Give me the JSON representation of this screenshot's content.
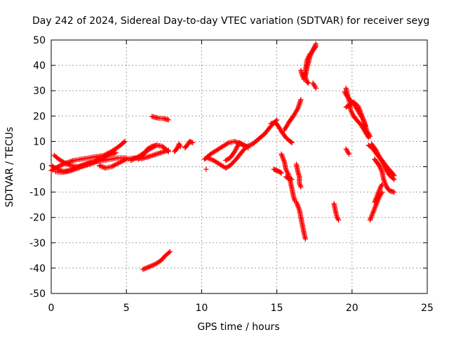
{
  "chart_data": {
    "type": "scatter",
    "title": "Day 242 of 2024, Sidereal Day-to-day VTEC variation (SDTVAR) for receiver seyg",
    "xlabel": "GPS time / hours",
    "ylabel": "SDTVAR / TECUs",
    "xlim": [
      0,
      25
    ],
    "ylim": [
      -50,
      50
    ],
    "xticks": [
      "0",
      "5",
      "10",
      "15",
      "20",
      "25"
    ],
    "yticks": [
      "-50",
      "-40",
      "-30",
      "-20",
      "-10",
      "0",
      "10",
      "20",
      "30",
      "40",
      "50"
    ],
    "grid": true,
    "marker": "plus",
    "series": [
      {
        "name": "SDTVAR",
        "color": "#ff0000",
        "segments": [
          [
            [
              0.0,
              -1.5
            ],
            [
              0.3,
              -0.5
            ],
            [
              0.6,
              0.5
            ],
            [
              1.0,
              1.5
            ],
            [
              1.5,
              2.5
            ],
            [
              2.0,
              3.0
            ],
            [
              2.5,
              3.5
            ],
            [
              3.0,
              4.0
            ],
            [
              3.5,
              4.5
            ],
            [
              4.0,
              6.0
            ],
            [
              4.5,
              8.0
            ],
            [
              4.9,
              10.0
            ]
          ],
          [
            [
              0.0,
              0.5
            ],
            [
              0.4,
              -1.0
            ],
            [
              0.8,
              -1.8
            ],
            [
              1.2,
              -1.5
            ],
            [
              1.6,
              -0.5
            ],
            [
              2.0,
              0.5
            ],
            [
              2.5,
              1.5
            ],
            [
              3.0,
              2.0
            ],
            [
              3.5,
              2.5
            ],
            [
              4.0,
              3.0
            ],
            [
              4.5,
              3.5
            ],
            [
              5.0,
              3.5
            ]
          ],
          [
            [
              0.2,
              4.5
            ],
            [
              0.5,
              3.0
            ],
            [
              0.9,
              1.5
            ],
            [
              1.3,
              0.5
            ],
            [
              1.8,
              0.0
            ],
            [
              2.3,
              0.5
            ],
            [
              2.8,
              1.5
            ],
            [
              3.3,
              3.0
            ],
            [
              3.8,
              4.5
            ],
            [
              4.3,
              5.5
            ]
          ],
          [
            [
              0.3,
              -2.0
            ],
            [
              0.8,
              -2.2
            ],
            [
              1.3,
              -1.5
            ],
            [
              1.8,
              -0.5
            ],
            [
              2.3,
              0.8
            ],
            [
              2.8,
              2.0
            ],
            [
              3.3,
              3.5
            ]
          ],
          [
            [
              3.2,
              0.5
            ],
            [
              3.6,
              -0.5
            ],
            [
              4.0,
              0.0
            ],
            [
              4.5,
              1.5
            ],
            [
              5.0,
              3.0
            ],
            [
              5.5,
              3.5
            ],
            [
              6.0,
              3.2
            ],
            [
              6.5,
              4.0
            ],
            [
              7.0,
              5.0
            ],
            [
              7.5,
              6.0
            ],
            [
              7.8,
              6.5
            ]
          ],
          [
            [
              5.3,
              2.5
            ],
            [
              5.8,
              4.0
            ],
            [
              6.3,
              6.0
            ],
            [
              6.7,
              7.5
            ],
            [
              7.0,
              8.5
            ],
            [
              7.4,
              8.0
            ],
            [
              7.8,
              6.0
            ]
          ],
          [
            [
              5.8,
              3.0
            ],
            [
              6.1,
              4.5
            ],
            [
              6.4,
              7.0
            ],
            [
              6.7,
              8.0
            ],
            [
              7.0,
              8.5
            ],
            [
              7.3,
              8.2
            ]
          ],
          [
            [
              6.7,
              19.8
            ],
            [
              7.1,
              19.2
            ],
            [
              7.5,
              19.0
            ],
            [
              7.8,
              18.5
            ]
          ],
          [
            [
              6.1,
              -40.5
            ],
            [
              6.5,
              -39.5
            ],
            [
              6.9,
              -38.5
            ],
            [
              7.3,
              -37.0
            ],
            [
              7.6,
              -35.0
            ],
            [
              7.9,
              -33.5
            ]
          ],
          [
            [
              8.2,
              6.0
            ],
            [
              8.4,
              7.5
            ],
            [
              8.5,
              9.0
            ],
            [
              8.6,
              8.0
            ]
          ],
          [
            [
              8.9,
              7.5
            ],
            [
              9.1,
              9.0
            ],
            [
              9.2,
              10.0
            ],
            [
              9.4,
              9.5
            ]
          ],
          [
            [
              10.3,
              -1.0
            ]
          ],
          [
            [
              10.2,
              3.0
            ],
            [
              10.6,
              5.0
            ],
            [
              11.0,
              6.5
            ],
            [
              11.4,
              8.0
            ],
            [
              11.8,
              9.5
            ],
            [
              12.2,
              10.0
            ],
            [
              12.6,
              9.0
            ],
            [
              13.0,
              8.0
            ],
            [
              13.4,
              9.0
            ],
            [
              13.8,
              11.0
            ],
            [
              14.2,
              13.0
            ],
            [
              14.6,
              16.0
            ],
            [
              15.0,
              18.5
            ]
          ],
          [
            [
              10.4,
              3.5
            ],
            [
              10.8,
              2.5
            ],
            [
              11.2,
              1.0
            ],
            [
              11.6,
              -0.5
            ],
            [
              11.9,
              0.5
            ],
            [
              12.3,
              3.0
            ],
            [
              12.7,
              6.0
            ],
            [
              13.0,
              8.0
            ]
          ],
          [
            [
              11.6,
              2.5
            ],
            [
              11.9,
              3.5
            ],
            [
              12.2,
              6.0
            ],
            [
              12.5,
              9.5
            ],
            [
              12.8,
              8.5
            ],
            [
              13.1,
              7.5
            ]
          ],
          [
            [
              14.6,
              17.0
            ],
            [
              14.9,
              17.5
            ],
            [
              15.1,
              16.0
            ],
            [
              15.3,
              14.0
            ],
            [
              15.6,
              11.5
            ],
            [
              15.9,
              10.0
            ],
            [
              16.0,
              9.5
            ]
          ],
          [
            [
              15.5,
              14.5
            ],
            [
              15.8,
              17.5
            ],
            [
              16.1,
              20.0
            ],
            [
              16.4,
              23.0
            ],
            [
              16.6,
              26.5
            ]
          ],
          [
            [
              14.8,
              -1.0
            ],
            [
              15.0,
              -1.5
            ],
            [
              15.2,
              -2.0
            ],
            [
              15.3,
              -2.5
            ]
          ],
          [
            [
              15.3,
              5.0
            ],
            [
              15.5,
              2.0
            ],
            [
              15.6,
              -1.0
            ],
            [
              15.8,
              -3.5
            ],
            [
              15.9,
              -6.0
            ],
            [
              16.0,
              -8.5
            ],
            [
              16.1,
              -11.5
            ],
            [
              16.2,
              -13.5
            ]
          ],
          [
            [
              15.6,
              -4.0
            ],
            [
              15.8,
              -4.5
            ],
            [
              16.0,
              -5.0
            ]
          ],
          [
            [
              16.3,
              1.0
            ],
            [
              16.4,
              -2.0
            ],
            [
              16.5,
              -4.0
            ],
            [
              16.5,
              -6.5
            ],
            [
              16.6,
              -8.0
            ]
          ],
          [
            [
              16.3,
              -14.0
            ],
            [
              16.5,
              -17.0
            ],
            [
              16.6,
              -20.0
            ],
            [
              16.7,
              -23.0
            ],
            [
              16.8,
              -26.0
            ],
            [
              16.9,
              -28.5
            ]
          ],
          [
            [
              16.9,
              36.0
            ],
            [
              17.0,
              39.0
            ],
            [
              17.1,
              41.0
            ],
            [
              17.2,
              43.5
            ],
            [
              17.4,
              46.0
            ],
            [
              17.6,
              48.5
            ]
          ],
          [
            [
              17.2,
              44.0
            ],
            [
              17.4,
              46.0
            ],
            [
              17.6,
              47.5
            ]
          ],
          [
            [
              16.9,
              35.5
            ],
            [
              17.0,
              33.5
            ],
            [
              17.1,
              33.0
            ]
          ],
          [
            [
              16.6,
              38.0
            ],
            [
              16.7,
              36.0
            ],
            [
              16.8,
              34.5
            ],
            [
              16.9,
              38.0
            ],
            [
              17.0,
              42.0
            ],
            [
              17.2,
              44.5
            ]
          ],
          [
            [
              17.4,
              33.0
            ],
            [
              17.5,
              32.0
            ],
            [
              17.6,
              31.0
            ]
          ],
          [
            [
              18.8,
              -14.5
            ],
            [
              18.9,
              -17.5
            ],
            [
              19.0,
              -20.0
            ],
            [
              19.1,
              -21.0
            ]
          ],
          [
            [
              19.6,
              31.0
            ],
            [
              19.7,
              28.5
            ],
            [
              19.8,
              26.0
            ],
            [
              19.9,
              22.5
            ],
            [
              20.1,
              20.0
            ],
            [
              20.3,
              18.5
            ],
            [
              20.6,
              16.5
            ],
            [
              20.9,
              13.5
            ],
            [
              21.1,
              11.5
            ]
          ],
          [
            [
              19.6,
              23.5
            ],
            [
              19.9,
              24.5
            ],
            [
              20.1,
              25.5
            ],
            [
              20.4,
              24.0
            ],
            [
              20.6,
              21.0
            ],
            [
              20.8,
              18.0
            ],
            [
              21.0,
              14.0
            ],
            [
              21.2,
              12.0
            ]
          ],
          [
            [
              19.5,
              29.5
            ],
            [
              19.7,
              27.5
            ],
            [
              20.1,
              25.0
            ],
            [
              20.4,
              22.0
            ],
            [
              20.7,
              19.0
            ],
            [
              20.9,
              16.0
            ]
          ],
          [
            [
              19.6,
              7.0
            ],
            [
              19.7,
              6.0
            ],
            [
              19.8,
              5.0
            ]
          ],
          [
            [
              21.1,
              8.5
            ],
            [
              21.4,
              7.0
            ],
            [
              21.7,
              4.5
            ],
            [
              22.0,
              2.5
            ],
            [
              22.3,
              0.0
            ],
            [
              22.6,
              -2.0
            ],
            [
              22.8,
              -3.5
            ]
          ],
          [
            [
              21.3,
              9.0
            ],
            [
              21.6,
              6.5
            ],
            [
              21.9,
              3.0
            ],
            [
              22.2,
              -0.5
            ],
            [
              22.5,
              -3.5
            ],
            [
              22.8,
              -5.0
            ]
          ],
          [
            [
              21.5,
              3.0
            ],
            [
              21.8,
              0.5
            ],
            [
              22.0,
              -2.0
            ],
            [
              22.1,
              -5.0
            ],
            [
              22.3,
              -8.0
            ],
            [
              22.5,
              -9.5
            ],
            [
              22.8,
              -10.0
            ]
          ],
          [
            [
              21.2,
              -21.0
            ],
            [
              21.4,
              -18.0
            ],
            [
              21.6,
              -15.0
            ],
            [
              21.8,
              -12.0
            ],
            [
              22.0,
              -10.0
            ]
          ],
          [
            [
              21.5,
              -14.0
            ],
            [
              21.7,
              -11.0
            ],
            [
              21.9,
              -8.0
            ],
            [
              22.0,
              -7.0
            ]
          ]
        ]
      }
    ]
  }
}
